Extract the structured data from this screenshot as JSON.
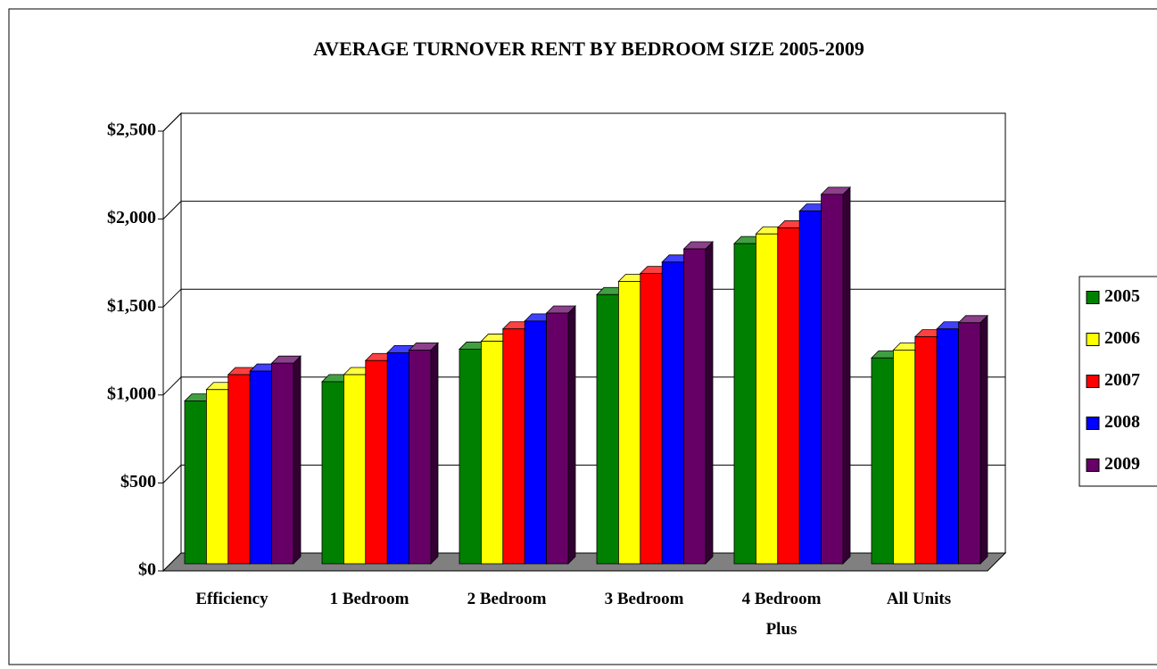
{
  "chart_data": {
    "type": "bar3d",
    "title": "AVERAGE TURNOVER RENT BY BEDROOM SIZE 2005-2009",
    "categories": [
      "Efficiency",
      "1 Bedroom",
      "2 Bedroom",
      "3 Bedroom",
      "4 Bedroom Plus",
      "All Units"
    ],
    "series": [
      {
        "name": "2005",
        "color": "#008000",
        "values": [
          925,
          1035,
          1220,
          1530,
          1820,
          1170
        ]
      },
      {
        "name": "2006",
        "color": "#ffff00",
        "values": [
          990,
          1075,
          1265,
          1605,
          1875,
          1215
        ]
      },
      {
        "name": "2007",
        "color": "#ff0000",
        "values": [
          1075,
          1155,
          1335,
          1650,
          1910,
          1290
        ]
      },
      {
        "name": "2008",
        "color": "#0000ff",
        "values": [
          1095,
          1200,
          1380,
          1715,
          2005,
          1335
        ]
      },
      {
        "name": "2009",
        "color": "#660066",
        "values": [
          1140,
          1215,
          1425,
          1790,
          2100,
          1370
        ]
      }
    ],
    "ylim": [
      0,
      2500
    ],
    "yticks": [
      {
        "value": 0,
        "label": "$0"
      },
      {
        "value": 500,
        "label": "$500"
      },
      {
        "value": 1000,
        "label": "$1,000"
      },
      {
        "value": 1500,
        "label": "$1,500"
      },
      {
        "value": 2000,
        "label": "$2,000"
      },
      {
        "value": 2500,
        "label": "$2,500"
      }
    ],
    "grid": true,
    "legend": "right"
  }
}
